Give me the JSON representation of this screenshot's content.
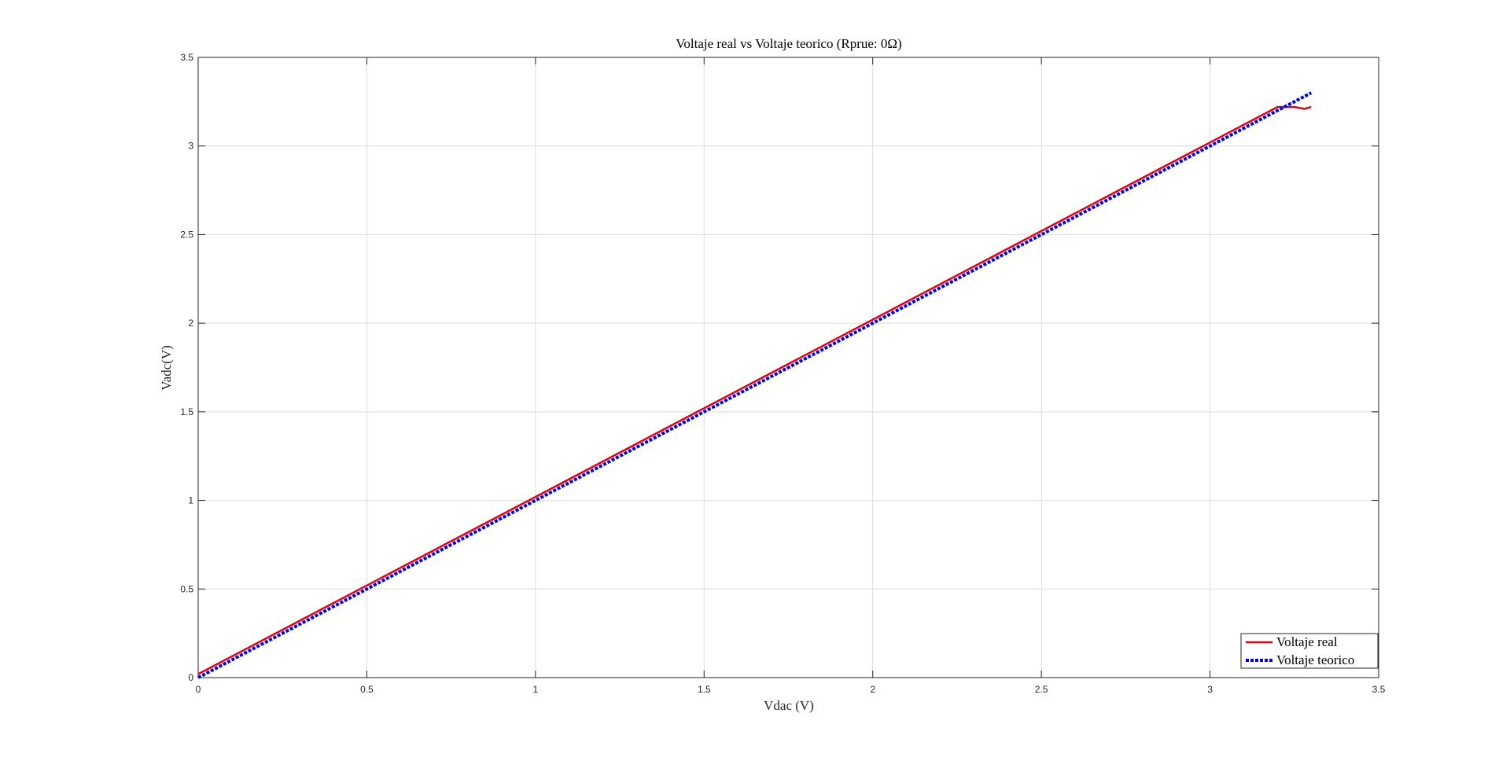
{
  "chart_data": {
    "type": "line",
    "title": "Voltaje real vs Voltaje teorico (Rprue: 0Ω)",
    "xlabel": "Vdac (V)",
    "ylabel": "Vadc(V)",
    "xlim": [
      0,
      3.5
    ],
    "ylim": [
      0,
      3.5
    ],
    "x_ticks": [
      0,
      0.5,
      1,
      1.5,
      2,
      2.5,
      3,
      3.5
    ],
    "y_ticks": [
      0,
      0.5,
      1,
      1.5,
      2,
      2.5,
      3,
      3.5
    ],
    "x_tick_labels": [
      "0",
      "0.5",
      "1",
      "1.5",
      "2",
      "2.5",
      "3",
      "3.5"
    ],
    "y_tick_labels": [
      "0",
      "0.5",
      "1",
      "1.5",
      "2",
      "2.5",
      "3",
      "3.5"
    ],
    "grid": true,
    "legend_position": "bottom-right",
    "series": [
      {
        "name": "Voltaje real",
        "color": "#e0001b",
        "style": "solid",
        "x": [
          0,
          0.13,
          0.5,
          1.0,
          1.5,
          2.0,
          2.5,
          3.0,
          3.2,
          3.25,
          3.28,
          3.3
        ],
        "y": [
          0.02,
          0.15,
          0.52,
          1.02,
          1.52,
          2.02,
          2.52,
          3.02,
          3.22,
          3.22,
          3.21,
          3.22
        ]
      },
      {
        "name": "Voltaje teorico",
        "color": "#0000e0",
        "style": "dotted",
        "x": [
          0,
          3.3
        ],
        "y": [
          0,
          3.3
        ]
      }
    ]
  }
}
